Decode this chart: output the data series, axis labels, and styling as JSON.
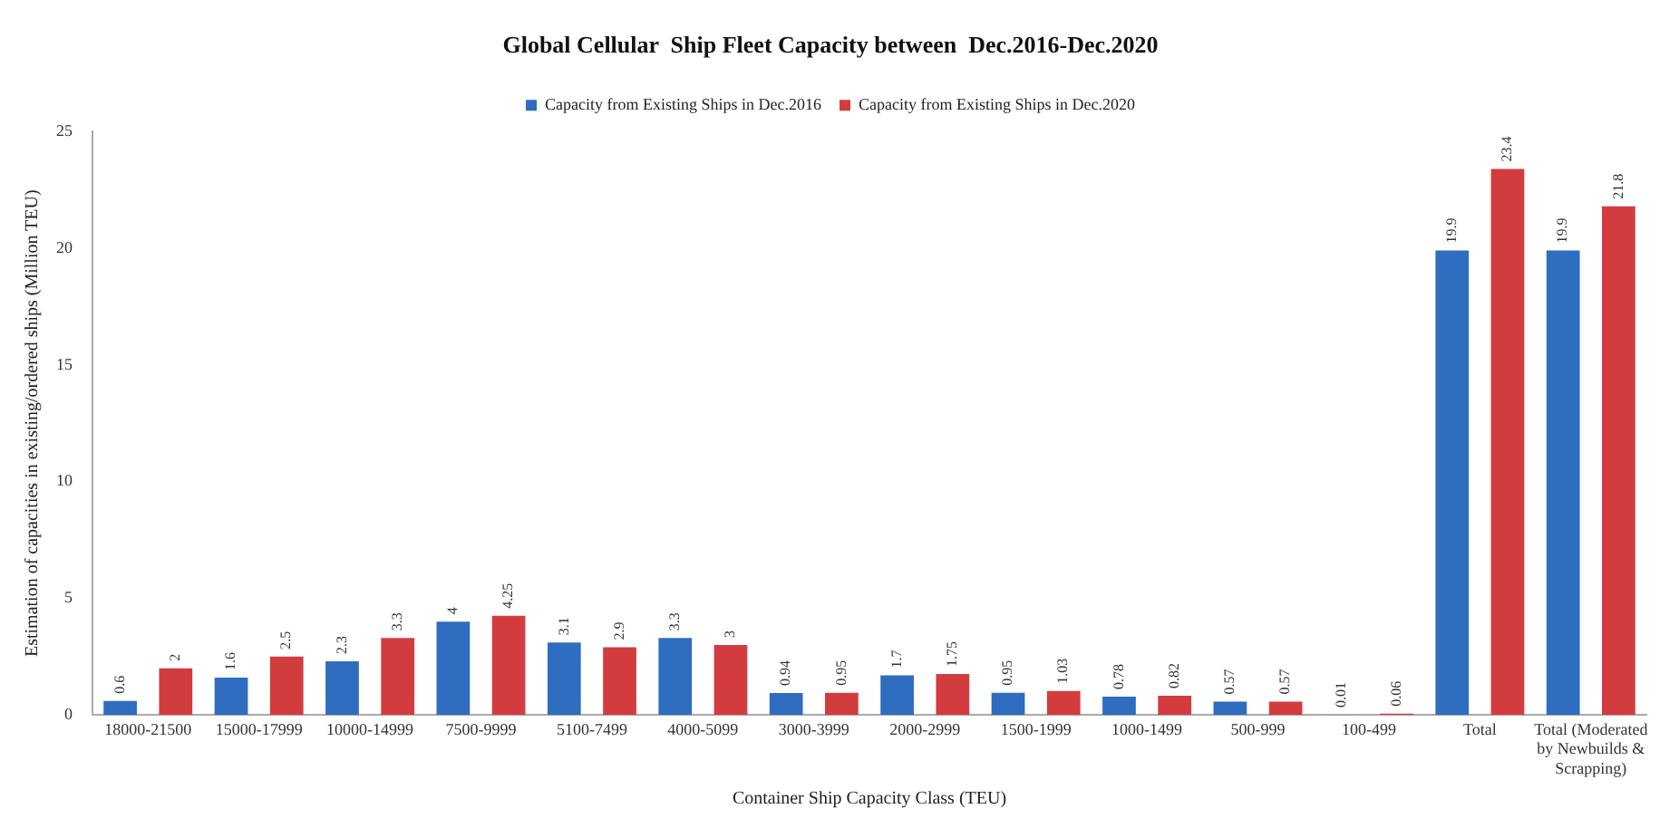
{
  "chart_data": {
    "type": "bar",
    "title": "Global Cellular  Ship Fleet Capacity between  Dec.2016-Dec.2020",
    "xlabel": "Container Ship Capacity Class (TEU)",
    "ylabel": "Estimation of capacities in existing/ordered ships (Million TEU)",
    "categories": [
      "18000-21500",
      "15000-17999",
      "10000-14999",
      "7500-9999",
      "5100-7499",
      "4000-5099",
      "3000-3999",
      "2000-2999",
      "1500-1999",
      "1000-1499",
      "500-999",
      "100-499",
      "Total",
      "Total (Moderated by Newbuilds & Scrapping)"
    ],
    "series": [
      {
        "name": "Capacity from Existing Ships in Dec.2016",
        "color": "#2e6dbf",
        "values": [
          0.6,
          1.6,
          2.3,
          4.0,
          3.1,
          3.3,
          0.94,
          1.7,
          0.95,
          0.78,
          0.57,
          0.01,
          19.9,
          19.9
        ]
      },
      {
        "name": "Capacity from Existing Ships in Dec.2020",
        "color": "#d33c3e",
        "values": [
          2.0,
          2.5,
          3.3,
          4.25,
          2.9,
          3.0,
          0.95,
          1.75,
          1.03,
          0.82,
          0.57,
          0.06,
          23.4,
          21.8
        ]
      }
    ],
    "ylim": [
      0,
      25
    ],
    "yticks": [
      0,
      5,
      10,
      15,
      20,
      25
    ],
    "grid": false,
    "legend": "top",
    "data_labels": true
  }
}
